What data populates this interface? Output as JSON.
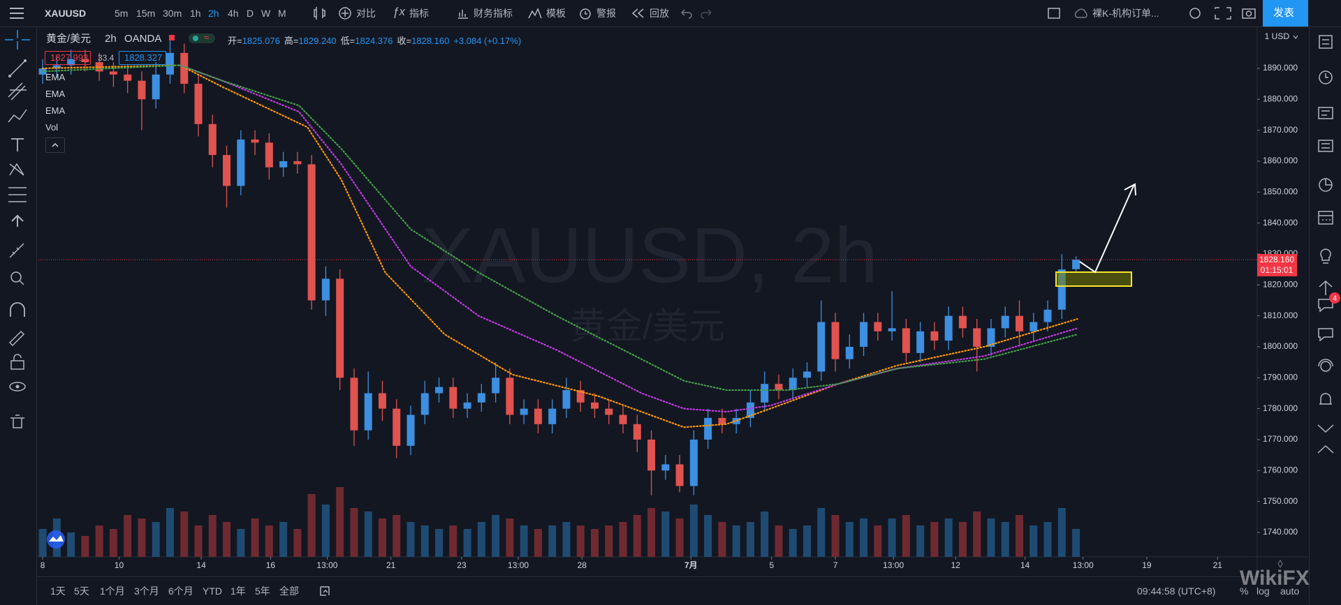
{
  "toolbar": {
    "symbol": "XAUUSD",
    "intervals": [
      "5m",
      "15m",
      "30m",
      "1h",
      "2h",
      "4h",
      "D",
      "W",
      "M"
    ],
    "active_interval": 4,
    "buttons": [
      "对比",
      "指标",
      "财务指标",
      "模板",
      "警报",
      "回放"
    ],
    "layout": "裸K-机构订单...",
    "publish": "发表"
  },
  "legend": {
    "symbol": "黄金/美元",
    "interval": "2h",
    "exchange": "OANDA",
    "ohlc": [
      {
        "label": "开=",
        "value": "1825.076"
      },
      {
        "label": "高=",
        "value": "1829.240"
      },
      {
        "label": "低=",
        "value": "1824.376"
      },
      {
        "label": "收=",
        "value": "1828.160"
      }
    ],
    "change": "+3.084 (+0.17%)",
    "sell": "1827.993",
    "spread": "33.4",
    "buy": "1828.327",
    "indicators": [
      "EMA",
      "EMA",
      "EMA",
      "Vol"
    ]
  },
  "watermark": {
    "title": "XAUUSD, 2h",
    "subtitle": "黄金/美元"
  },
  "price_axis": {
    "currency": "1 USD",
    "price_tag": "1828.160",
    "countdown": "01:15:01"
  },
  "sidebar": {
    "badge": "4"
  },
  "bottom_bar": {
    "ranges": [
      "1天",
      "5天",
      "1个月",
      "3个月",
      "6个月",
      "YTD",
      "1年",
      "5年",
      "全部"
    ],
    "clock": "09:44:58 (UTC+8)",
    "percent": "%",
    "log": "log",
    "auto": "auto",
    "brand": "WikiFX"
  },
  "chart_data": {
    "type": "candlestick",
    "up_color": "#3d8fe0",
    "down_color": "#e0534f",
    "volume_up_color": "#1f4b73",
    "volume_down_color": "#6e2a30",
    "open": [
      1888,
      1890,
      1891,
      1893,
      1892,
      1889,
      1888,
      1886,
      1880,
      1888,
      1895,
      1885,
      1872,
      1862,
      1852,
      1867,
      1866,
      1858,
      1860,
      1859,
      1815,
      1822,
      1790,
      1773,
      1785,
      1780,
      1768,
      1778,
      1785,
      1787,
      1780,
      1782,
      1785,
      1790,
      1778,
      1780,
      1775,
      1780,
      1786,
      1782,
      1780,
      1778,
      1775,
      1770,
      1760,
      1762,
      1755,
      1770,
      1777,
      1775,
      1777,
      1782,
      1788,
      1786,
      1790,
      1792,
      1808,
      1796,
      1800,
      1808,
      1805,
      1806,
      1798,
      1805,
      1802,
      1810,
      1806,
      1800,
      1806,
      1810,
      1805,
      1808,
      1812,
      1825.076
    ],
    "high": [
      1893,
      1894,
      1896,
      1896,
      1895,
      1892,
      1891,
      1889,
      1892,
      1900,
      1898,
      1888,
      1875,
      1865,
      1870,
      1870,
      1869,
      1863,
      1863,
      1862,
      1826,
      1825,
      1793,
      1792,
      1789,
      1783,
      1781,
      1789,
      1790,
      1790,
      1785,
      1788,
      1795,
      1793,
      1783,
      1783,
      1783,
      1790,
      1789,
      1785,
      1783,
      1781,
      1778,
      1773,
      1765,
      1765,
      1773,
      1780,
      1780,
      1780,
      1786,
      1792,
      1791,
      1793,
      1795,
      1815,
      1811,
      1804,
      1811,
      1811,
      1818,
      1809,
      1808,
      1808,
      1813,
      1813,
      1809,
      1809,
      1813,
      1815,
      1811,
      1815,
      1830,
      1829.24
    ],
    "low": [
      1885,
      1887,
      1888,
      1889,
      1886,
      1884,
      1882,
      1870,
      1877,
      1885,
      1882,
      1868,
      1858,
      1845,
      1849,
      1862,
      1854,
      1855,
      1856,
      1812,
      1810,
      1786,
      1768,
      1770,
      1776,
      1764,
      1765,
      1775,
      1782,
      1777,
      1777,
      1779,
      1782,
      1775,
      1775,
      1772,
      1772,
      1777,
      1779,
      1777,
      1775,
      1772,
      1766,
      1752,
      1757,
      1753,
      1752,
      1767,
      1772,
      1772,
      1774,
      1779,
      1783,
      1783,
      1787,
      1789,
      1792,
      1793,
      1797,
      1802,
      1802,
      1795,
      1795,
      1799,
      1799,
      1803,
      1792,
      1797,
      1803,
      1800,
      1802,
      1805,
      1809,
      1824.376
    ],
    "close": [
      1890,
      1891,
      1893,
      1892,
      1889,
      1888,
      1886,
      1880,
      1888,
      1895,
      1885,
      1872,
      1862,
      1852,
      1867,
      1866,
      1858,
      1860,
      1859,
      1815,
      1822,
      1790,
      1773,
      1785,
      1780,
      1768,
      1778,
      1785,
      1787,
      1780,
      1782,
      1785,
      1790,
      1778,
      1780,
      1775,
      1780,
      1786,
      1782,
      1780,
      1778,
      1775,
      1770,
      1760,
      1762,
      1755,
      1770,
      1777,
      1775,
      1777,
      1782,
      1788,
      1786,
      1790,
      1792,
      1808,
      1796,
      1800,
      1808,
      1805,
      1806,
      1798,
      1805,
      1802,
      1810,
      1806,
      1800,
      1806,
      1810,
      1805,
      1808,
      1812,
      1825,
      1828.16
    ],
    "volume": [
      40,
      55,
      35,
      30,
      45,
      40,
      60,
      55,
      50,
      70,
      65,
      45,
      60,
      50,
      40,
      55,
      45,
      50,
      40,
      90,
      75,
      100,
      70,
      65,
      55,
      60,
      50,
      45,
      40,
      45,
      40,
      50,
      60,
      55,
      45,
      40,
      45,
      50,
      45,
      40,
      45,
      50,
      60,
      70,
      65,
      55,
      75,
      60,
      50,
      45,
      50,
      65,
      45,
      40,
      45,
      70,
      60,
      50,
      55,
      45,
      55,
      60,
      45,
      50,
      55,
      50,
      65,
      55,
      50,
      60,
      45,
      50,
      70,
      40
    ],
    "series": [
      {
        "color": "#ff9800",
        "x": [
          0,
          9.7,
          12.7,
          18.7,
          21.1,
          24.2,
          28.4,
          33.2,
          39.3,
          42.3,
          45.3,
          48.3,
          51.4,
          56.2,
          60.4,
          66.5,
          73.1
        ],
        "values": [
          1890,
          1891,
          1884,
          1871,
          1854,
          1824,
          1804,
          1791,
          1784,
          1779,
          1774,
          1775,
          1780,
          1788,
          1794,
          1800,
          1809
        ]
      },
      {
        "color": "#c03be0",
        "x": [
          9.7,
          12.7,
          18.1,
          21.1,
          26,
          30.8,
          36.3,
          42.3,
          45.3,
          48.3,
          51.4,
          56.2,
          60.4,
          66.5,
          73.1
        ],
        "values": [
          1891,
          1886,
          1876,
          1859,
          1826,
          1810,
          1799,
          1785,
          1780,
          1779,
          1781,
          1788,
          1793,
          1797,
          1806
        ]
      },
      {
        "color": "#43a047",
        "x": [
          0,
          9.7,
          12.7,
          18.1,
          21.1,
          26,
          30.8,
          36.3,
          42.3,
          45.3,
          48.3,
          52.6,
          56.2,
          60.4,
          66.5,
          73.1
        ],
        "values": [
          1889,
          1891,
          1886,
          1878,
          1864,
          1838,
          1824,
          1810,
          1796,
          1789,
          1786,
          1786,
          1788,
          1793,
          1796,
          1804
        ]
      }
    ],
    "xlim": [
      -0.3,
      85.8
    ],
    "xticks": [
      {
        "value": 0,
        "label": "8"
      },
      {
        "value": 5.4,
        "label": "10"
      },
      {
        "value": 11.2,
        "label": "14"
      },
      {
        "value": 16.1,
        "label": "16"
      },
      {
        "value": 20.1,
        "label": "13:00"
      },
      {
        "value": 24.6,
        "label": "21"
      },
      {
        "value": 29.6,
        "label": "23"
      },
      {
        "value": 33.6,
        "label": "13:00"
      },
      {
        "value": 38.1,
        "label": "28"
      },
      {
        "value": 45.8,
        "label": "7月"
      },
      {
        "value": 51.5,
        "label": "5"
      },
      {
        "value": 56,
        "label": "7"
      },
      {
        "value": 60.1,
        "label": "13:00"
      },
      {
        "value": 64.5,
        "label": "12"
      },
      {
        "value": 69.4,
        "label": "14"
      },
      {
        "value": 73.5,
        "label": "13:00"
      },
      {
        "value": 78,
        "label": "19"
      },
      {
        "value": 83,
        "label": "21"
      }
    ],
    "ylim": [
      1732.1,
      1903.3
    ],
    "yticks": [
      {
        "value": 1890,
        "label": "1890.000"
      },
      {
        "value": 1880,
        "label": "1880.000"
      },
      {
        "value": 1870,
        "label": "1870.000"
      },
      {
        "value": 1860,
        "label": "1860.000"
      },
      {
        "value": 1850,
        "label": "1850.000"
      },
      {
        "value": 1840,
        "label": "1840.000"
      },
      {
        "value": 1830,
        "label": "1830.000"
      },
      {
        "value": 1820,
        "label": "1820.000"
      },
      {
        "value": 1810,
        "label": "1810.000"
      },
      {
        "value": 1800,
        "label": "1800.000"
      },
      {
        "value": 1790,
        "label": "1790.000"
      },
      {
        "value": 1780,
        "label": "1780.000"
      },
      {
        "value": 1770,
        "label": "1770.000"
      },
      {
        "value": 1760,
        "label": "1760.000"
      },
      {
        "value": 1750,
        "label": "1750.000"
      },
      {
        "value": 1740,
        "label": "1740.000"
      }
    ],
    "grid": false
  }
}
